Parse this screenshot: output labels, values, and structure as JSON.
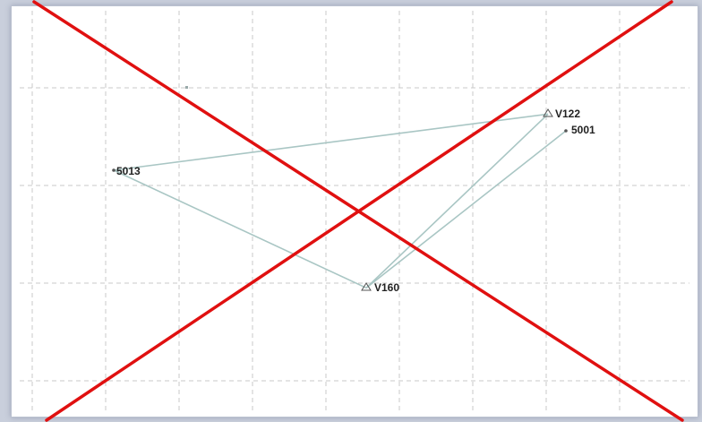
{
  "diagram": {
    "points": [
      {
        "id": "5013",
        "label": "5013",
        "symbol": "dot"
      },
      {
        "id": "V122",
        "label": "V122",
        "symbol": "triangle"
      },
      {
        "id": "5001",
        "label": "5001",
        "symbol": "dot"
      },
      {
        "id": "V160",
        "label": "V160",
        "symbol": "triangle"
      }
    ],
    "links": [
      [
        "5013",
        "V122"
      ],
      [
        "5013",
        "V160"
      ],
      [
        "V160",
        "V122"
      ],
      [
        "V160",
        "5001"
      ]
    ],
    "colors": {
      "link": "#a9c6c4",
      "grid": "#c8c8c8",
      "cross": "#e01010",
      "text": "#222222"
    }
  }
}
